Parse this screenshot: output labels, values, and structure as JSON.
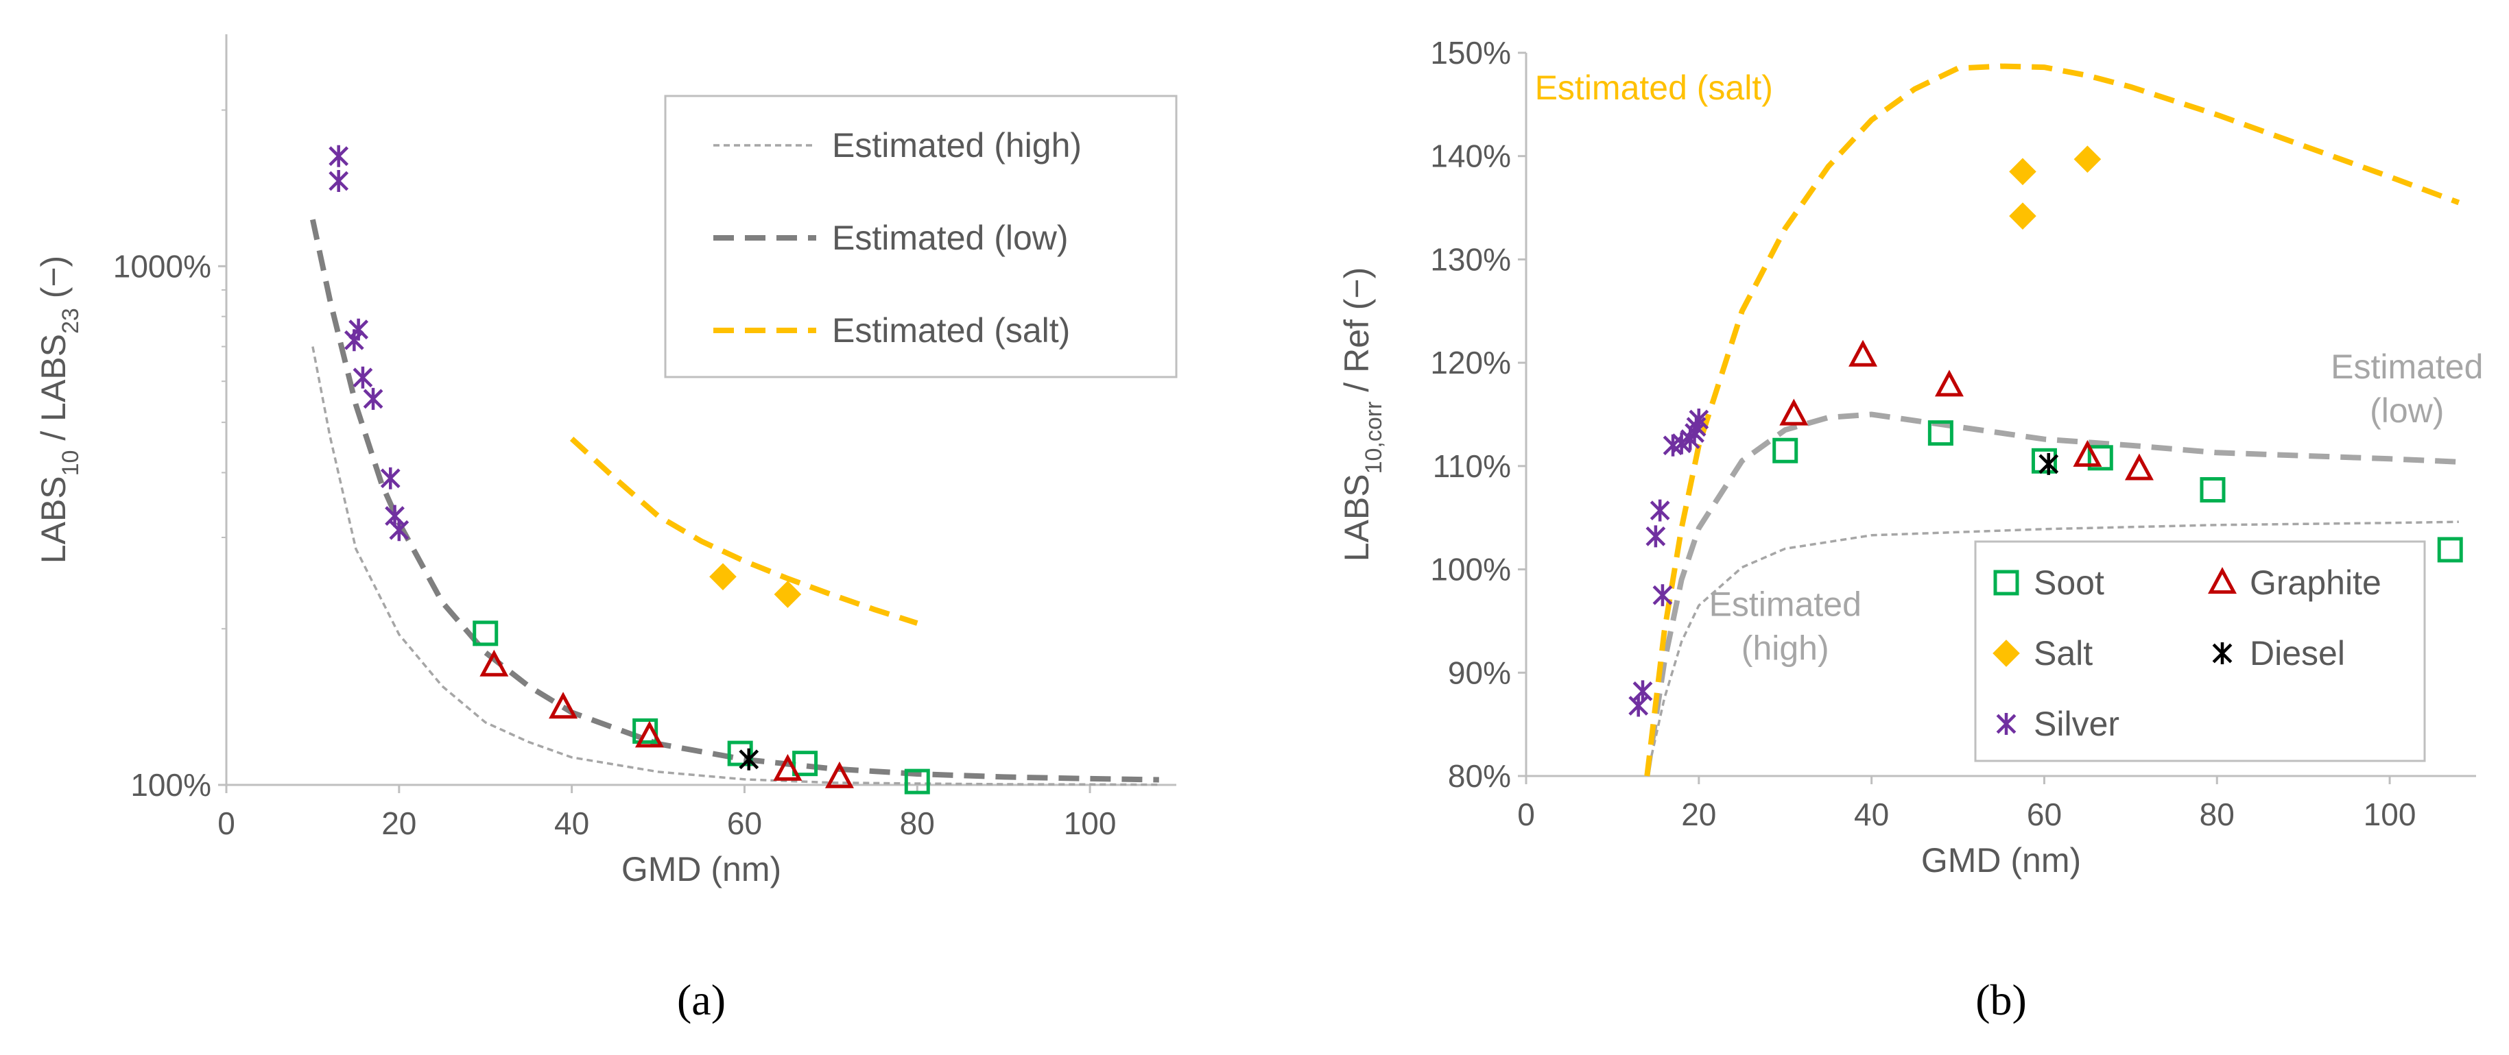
{
  "colors": {
    "axis": "#bfbfbf",
    "text": "#595959",
    "est_high": "#a6a6a6",
    "est_low": "#7f7f7f",
    "est_low_b": "#a6a6a6",
    "est_salt": "#ffc000",
    "soot": "#00b050",
    "graphite": "#c00000",
    "salt": "#ffc000",
    "diesel": "#000000",
    "silver": "#7030a0"
  },
  "chart_data": [
    {
      "panel": "a",
      "panel_label": "(a)",
      "type": "scatter",
      "yscale": "log",
      "xlabel": "GMD (nm)",
      "ylabel": {
        "p1": "LABS",
        "s1": "10",
        "p2": " / LABS",
        "s2": "23",
        "p3": " (−)"
      },
      "xlim": [
        0,
        110
      ],
      "ylim": [
        100,
        2800
      ],
      "xticks": [
        0,
        20,
        40,
        60,
        80,
        100
      ],
      "yticks": [
        {
          "value": 100,
          "label": "100%"
        },
        {
          "value": 1000,
          "label": "1000%"
        }
      ],
      "legend": {
        "position": "top-right",
        "entries": [
          {
            "key": "est_high",
            "label": "Estimated (high)"
          },
          {
            "key": "est_low",
            "label": "Estimated (low)"
          },
          {
            "key": "est_salt",
            "label": "Estimated (salt)"
          }
        ]
      },
      "lines": [
        {
          "name": "Estimated (high)",
          "key": "est_high",
          "style": "thin-dash",
          "x": [
            10,
            12,
            15,
            20,
            25,
            30,
            35,
            40,
            50,
            60,
            70,
            80,
            90,
            100,
            108
          ],
          "y": [
            700,
            470,
            285,
            195,
            155,
            132,
            121,
            113,
            106,
            102.5,
            101,
            100.6,
            100.3,
            100.2,
            100.1
          ]
        },
        {
          "name": "Estimated (low)",
          "key": "est_low",
          "style": "thick-dash",
          "x": [
            10,
            12,
            15,
            18,
            20,
            25,
            30,
            35,
            40,
            50,
            60,
            70,
            80,
            90,
            100,
            108
          ],
          "y": [
            1230,
            860,
            540,
            380,
            320,
            225,
            180,
            155,
            138,
            120,
            112,
            107.5,
            105,
            103.6,
            102.8,
            102.3
          ]
        },
        {
          "name": "Estimated (salt)",
          "key": "est_salt",
          "style": "thick-dash",
          "x": [
            40,
            45,
            50,
            55,
            60,
            65,
            70,
            75,
            80
          ],
          "y": [
            465,
            390,
            330,
            295,
            270,
            250,
            233,
            218,
            205
          ]
        }
      ],
      "series": [
        {
          "name": "Soot",
          "key": "soot",
          "marker": "square",
          "x": [
            30,
            48.5,
            59.5,
            67,
            80
          ],
          "y": [
            196,
            127,
            115,
            110,
            101.5
          ]
        },
        {
          "name": "Graphite",
          "key": "graphite",
          "marker": "triangle",
          "x": [
            31,
            39,
            49,
            65,
            71
          ],
          "y": [
            170,
            141,
            124,
            107,
            103.5
          ]
        },
        {
          "name": "Salt",
          "key": "salt",
          "marker": "diamond",
          "x": [
            57.5,
            65
          ],
          "y": [
            252,
            233
          ]
        },
        {
          "name": "Diesel",
          "key": "diesel",
          "marker": "asterisk",
          "x": [
            60.5
          ],
          "y": [
            112
          ]
        },
        {
          "name": "Silver",
          "key": "silver",
          "marker": "asterisk",
          "x": [
            13,
            13,
            14.8,
            15.3,
            15.8,
            17,
            19,
            19.5,
            20
          ],
          "y": [
            1630,
            1460,
            720,
            755,
            610,
            555,
            390,
            330,
            310
          ]
        }
      ]
    },
    {
      "panel": "b",
      "panel_label": "(b)",
      "type": "scatter",
      "yscale": "linear",
      "xlabel": "GMD (nm)",
      "ylabel": {
        "p1": "LABS",
        "s1": "10,corr",
        "p2": " / Ref (−)"
      },
      "xlim": [
        0,
        110
      ],
      "ylim": [
        80,
        150
      ],
      "xticks": [
        0,
        20,
        40,
        60,
        80,
        100
      ],
      "yticks": [
        {
          "value": 80,
          "label": "80%"
        },
        {
          "value": 90,
          "label": "90%"
        },
        {
          "value": 100,
          "label": "100%"
        },
        {
          "value": 110,
          "label": "110%"
        },
        {
          "value": 120,
          "label": "120%"
        },
        {
          "value": 130,
          "label": "130%"
        },
        {
          "value": 140,
          "label": "140%"
        },
        {
          "value": 150,
          "label": "150%"
        }
      ],
      "annotations": [
        {
          "key": "est_salt",
          "lines": [
            "Estimated (salt)"
          ],
          "anchor": "start",
          "x": 1,
          "y": 145.5
        },
        {
          "key": "est_low_b",
          "lines": [
            "Estimated",
            "(low)"
          ],
          "anchor": "middle",
          "x": 102,
          "y": 118.5
        },
        {
          "key": "est_high_b",
          "lines": [
            "Estimated",
            "(high)"
          ],
          "anchor": "middle",
          "x": 30,
          "y": 95.5
        }
      ],
      "legend": {
        "position": "bottom-right",
        "entries": [
          {
            "key": "soot",
            "marker": "square",
            "label": "Soot"
          },
          {
            "key": "graphite",
            "marker": "triangle",
            "label": "Graphite"
          },
          {
            "key": "salt",
            "marker": "diamond",
            "label": "Salt"
          },
          {
            "key": "diesel",
            "marker": "asterisk",
            "label": "Diesel"
          },
          {
            "key": "silver",
            "marker": "asterisk",
            "label": "Silver"
          }
        ]
      },
      "lines": [
        {
          "name": "Estimated (high)",
          "key": "est_high",
          "style": "thin-dash",
          "x": [
            14,
            16,
            18,
            20,
            25,
            30,
            40,
            50,
            60,
            70,
            80,
            90,
            100,
            108
          ],
          "y": [
            80,
            87.5,
            93,
            96.5,
            100.2,
            102,
            103.3,
            103.6,
            103.9,
            104.1,
            104.3,
            104.4,
            104.5,
            104.6
          ]
        },
        {
          "name": "Estimated (low)",
          "key": "est_low_b",
          "style": "thick-dash",
          "x": [
            14,
            16,
            18,
            20,
            25,
            30,
            35,
            40,
            50,
            60,
            70,
            80,
            90,
            100,
            108
          ],
          "y": [
            80,
            91,
            99,
            104,
            110.5,
            113.5,
            114.7,
            115,
            113.8,
            112.6,
            112,
            111.3,
            111,
            110.7,
            110.4
          ]
        },
        {
          "name": "Estimated (salt)",
          "key": "est_salt",
          "style": "thick-dash",
          "x": [
            14,
            16,
            18,
            20,
            25,
            30,
            35,
            40,
            45,
            50,
            55,
            60,
            65,
            70,
            80,
            90,
            100,
            108
          ],
          "y": [
            80,
            94,
            104,
            112,
            125,
            133,
            139,
            143.5,
            146.5,
            148.5,
            148.7,
            148.6,
            147.8,
            146.7,
            144,
            141,
            138,
            135.5
          ]
        }
      ],
      "series": [
        {
          "name": "Soot",
          "key": "soot",
          "marker": "square",
          "x": [
            30,
            48,
            60,
            66.5,
            79.5,
            107
          ],
          "y": [
            111.5,
            113.2,
            110.5,
            110.8,
            107.7,
            101.9
          ]
        },
        {
          "name": "Graphite",
          "key": "graphite",
          "marker": "triangle",
          "x": [
            31,
            39,
            49,
            65,
            71
          ],
          "y": [
            115,
            120.7,
            117.8,
            111,
            109.7
          ]
        },
        {
          "name": "Salt",
          "key": "salt",
          "marker": "diamond",
          "x": [
            57.5,
            57.5,
            65
          ],
          "y": [
            138.5,
            134.2,
            139.7
          ]
        },
        {
          "name": "Diesel",
          "key": "diesel",
          "marker": "asterisk",
          "x": [
            60.5
          ],
          "y": [
            110.2
          ]
        },
        {
          "name": "Silver",
          "key": "silver",
          "marker": "asterisk",
          "x": [
            13,
            13.5,
            15,
            15.5,
            15.8,
            17,
            18,
            19,
            19.5,
            19.7,
            20
          ],
          "y": [
            86.8,
            88.2,
            103.2,
            105.7,
            97.5,
            112,
            112.2,
            112.6,
            113.2,
            113.8,
            114.5
          ]
        }
      ]
    }
  ]
}
